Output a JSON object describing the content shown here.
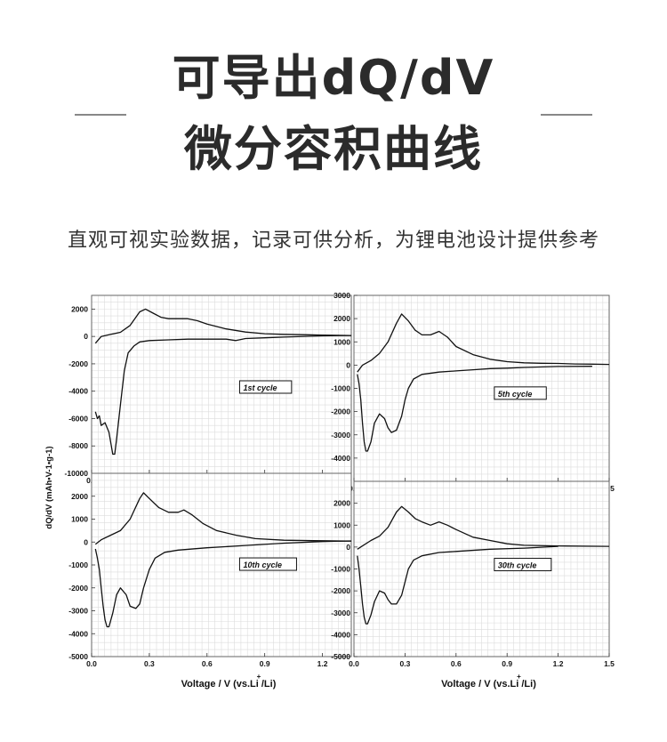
{
  "header": {
    "title_line1": "可导出dQ/dV",
    "title_line2": "微分容积曲线",
    "subtitle": "直观可视实验数据，记录可供分析，为锂电池设计提供参考"
  },
  "colors": {
    "curve": "#111111",
    "grid": "#dcdcdc",
    "frame": "#666666",
    "label_box": "#ffffff"
  },
  "chart_data": [
    {
      "type": "line",
      "annotation": "1st cycle",
      "xlim": [
        0,
        1.35
      ],
      "ylim": [
        -10000,
        3000
      ],
      "xticks": [
        "0.0",
        "0.3",
        "0.6",
        "0.9",
        "1.2"
      ],
      "yticks": [
        "2000",
        "0",
        "-2000",
        "-4000",
        "-6000",
        "-8000",
        "-10000"
      ],
      "ylabel": "dQ/dV (mAh•V-1•g-1)",
      "xlabel": "",
      "series": [
        {
          "x": [
            0.02,
            0.05,
            0.1,
            0.15,
            0.2,
            0.25,
            0.28,
            0.32,
            0.36,
            0.4,
            0.45,
            0.5,
            0.55,
            0.6,
            0.7,
            0.8,
            0.9,
            1.0,
            1.1,
            1.2,
            1.35
          ],
          "y": [
            -500,
            0,
            150,
            300,
            800,
            1800,
            2000,
            1700,
            1400,
            1300,
            1300,
            1300,
            1150,
            900,
            550,
            320,
            200,
            150,
            130,
            100,
            70
          ]
        },
        {
          "x": [
            1.35,
            1.2,
            1.0,
            0.9,
            0.8,
            0.75,
            0.7,
            0.6,
            0.5,
            0.4,
            0.3,
            0.25,
            0.22,
            0.19,
            0.17,
            0.15,
            0.13,
            0.12,
            0.11,
            0.09,
            0.07,
            0.05,
            0.04,
            0.03,
            0.02
          ],
          "y": [
            70,
            40,
            -50,
            -100,
            -150,
            -300,
            -200,
            -200,
            -200,
            -250,
            -300,
            -400,
            -700,
            -1200,
            -2500,
            -5000,
            -7500,
            -8600,
            -8600,
            -7000,
            -6300,
            -6500,
            -5800,
            -6000,
            -5500
          ]
        }
      ]
    },
    {
      "type": "line",
      "annotation": "5th cycle",
      "xlim": [
        0,
        1.5
      ],
      "ylim": [
        -5000,
        3000
      ],
      "xticks": [
        "0.0",
        "0.3",
        "0.6",
        "0.9",
        "1.2",
        "1.5"
      ],
      "yticks": [
        "3000",
        "2000",
        "1000",
        "0",
        "-1000",
        "-2000",
        "-3000",
        "-4000",
        "-5000"
      ],
      "xlabel": "",
      "ylabel": "",
      "series": [
        {
          "x": [
            0.02,
            0.05,
            0.1,
            0.15,
            0.2,
            0.25,
            0.28,
            0.32,
            0.36,
            0.4,
            0.45,
            0.5,
            0.55,
            0.6,
            0.7,
            0.8,
            0.9,
            1.0,
            1.1,
            1.2,
            1.3,
            1.4,
            1.5
          ],
          "y": [
            -300,
            0,
            200,
            500,
            1000,
            1800,
            2200,
            1900,
            1500,
            1300,
            1300,
            1450,
            1200,
            800,
            450,
            250,
            150,
            100,
            80,
            70,
            50,
            40,
            30
          ]
        },
        {
          "x": [
            1.4,
            1.2,
            1.0,
            0.9,
            0.8,
            0.7,
            0.6,
            0.5,
            0.4,
            0.35,
            0.32,
            0.3,
            0.28,
            0.25,
            0.22,
            0.2,
            0.18,
            0.15,
            0.12,
            0.1,
            0.08,
            0.07,
            0.06,
            0.05,
            0.04,
            0.03,
            0.02
          ],
          "y": [
            -50,
            -60,
            -100,
            -130,
            -150,
            -200,
            -250,
            -300,
            -400,
            -600,
            -1000,
            -1500,
            -2200,
            -2800,
            -2900,
            -2700,
            -2300,
            -2100,
            -2500,
            -3300,
            -3700,
            -3700,
            -3300,
            -2500,
            -1500,
            -800,
            -400
          ]
        }
      ]
    },
    {
      "type": "line",
      "annotation": "10th cycle",
      "xlim": [
        0,
        1.35
      ],
      "ylim": [
        -5000,
        3000
      ],
      "xticks": [
        "0.0",
        "0.3",
        "0.6",
        "0.9",
        "1.2"
      ],
      "yticks": [
        "2000",
        "1000",
        "0",
        "-1000",
        "-2000",
        "-3000",
        "-4000",
        "-5000"
      ],
      "xlabel": "Voltage  /  V (vs.Li  /Li)",
      "ylabel": "",
      "series": [
        {
          "x": [
            0.02,
            0.05,
            0.1,
            0.15,
            0.2,
            0.25,
            0.27,
            0.3,
            0.35,
            0.4,
            0.45,
            0.48,
            0.52,
            0.58,
            0.65,
            0.75,
            0.85,
            1.0,
            1.15,
            1.35
          ],
          "y": [
            -100,
            100,
            300,
            500,
            1000,
            1900,
            2150,
            1900,
            1500,
            1300,
            1300,
            1400,
            1200,
            800,
            500,
            300,
            150,
            80,
            60,
            40
          ]
        },
        {
          "x": [
            1.35,
            1.2,
            1.0,
            0.8,
            0.6,
            0.45,
            0.38,
            0.33,
            0.3,
            0.27,
            0.25,
            0.23,
            0.2,
            0.18,
            0.15,
            0.13,
            0.11,
            0.09,
            0.08,
            0.07,
            0.06,
            0.05,
            0.04,
            0.03,
            0.02
          ],
          "y": [
            50,
            20,
            -50,
            -150,
            -250,
            -350,
            -450,
            -700,
            -1200,
            -2000,
            -2700,
            -2900,
            -2800,
            -2300,
            -2000,
            -2300,
            -3100,
            -3700,
            -3700,
            -3400,
            -2800,
            -2000,
            -1200,
            -700,
            -300
          ]
        }
      ]
    },
    {
      "type": "line",
      "annotation": "30th cycle",
      "xlim": [
        0,
        1.5
      ],
      "ylim": [
        -5000,
        3000
      ],
      "xticks": [
        "0.0",
        "0.3",
        "0.6",
        "0.9",
        "1.2",
        "1.5"
      ],
      "yticks": [
        "2000",
        "1000",
        "0",
        "-1000",
        "-2000",
        "-3000",
        "-4000",
        "-5000"
      ],
      "xlabel": "Voltage  /  V (vs.Li  /Li)",
      "ylabel": "",
      "series": [
        {
          "x": [
            0.02,
            0.05,
            0.1,
            0.15,
            0.2,
            0.25,
            0.28,
            0.32,
            0.36,
            0.4,
            0.45,
            0.5,
            0.55,
            0.6,
            0.7,
            0.8,
            0.9,
            1.0,
            1.2,
            1.5
          ],
          "y": [
            -100,
            50,
            300,
            500,
            900,
            1600,
            1850,
            1600,
            1300,
            1150,
            1000,
            1150,
            1000,
            800,
            450,
            300,
            150,
            80,
            50,
            30
          ]
        },
        {
          "x": [
            1.2,
            1.0,
            0.8,
            0.6,
            0.5,
            0.4,
            0.35,
            0.32,
            0.3,
            0.28,
            0.25,
            0.22,
            0.2,
            0.18,
            0.15,
            0.12,
            0.1,
            0.08,
            0.07,
            0.06,
            0.05,
            0.04,
            0.03,
            0.02
          ],
          "y": [
            30,
            -50,
            -100,
            -200,
            -250,
            -400,
            -600,
            -1000,
            -1600,
            -2200,
            -2600,
            -2600,
            -2400,
            -2100,
            -2000,
            -2500,
            -3100,
            -3500,
            -3500,
            -3200,
            -2600,
            -1800,
            -1000,
            -400
          ]
        }
      ]
    }
  ]
}
